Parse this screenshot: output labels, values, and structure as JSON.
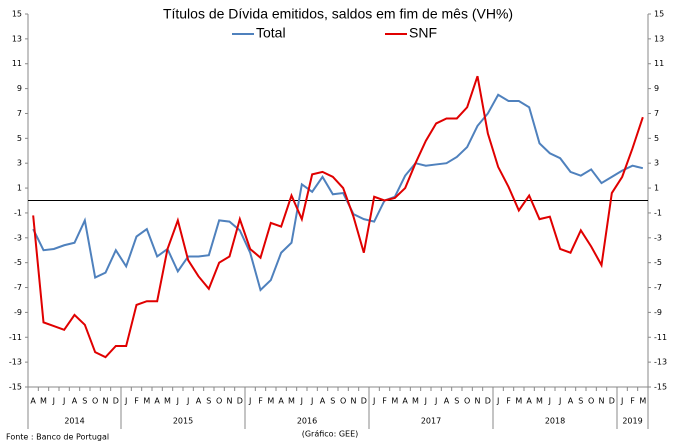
{
  "chart_data": {
    "type": "line",
    "title": "Títulos de Dívida emitidos, saldos em fim de mês  (VH%)",
    "source": "Fonte : Banco de Portugal",
    "credit": "(Gráfico: GEE)",
    "categories": [
      "A",
      "M",
      "J",
      "J",
      "A",
      "S",
      "O",
      "N",
      "D",
      "J",
      "F",
      "M",
      "A",
      "M",
      "J",
      "J",
      "A",
      "S",
      "O",
      "N",
      "D",
      "J",
      "F",
      "M",
      "A",
      "M",
      "J",
      "J",
      "A",
      "S",
      "O",
      "N",
      "D",
      "J",
      "F",
      "M",
      "A",
      "M",
      "J",
      "J",
      "A",
      "S",
      "O",
      "N",
      "D",
      "J",
      "F",
      "M",
      "A",
      "M",
      "J",
      "J",
      "A",
      "S",
      "O",
      "N",
      "D",
      "J",
      "F",
      "M"
    ],
    "year_labels": [
      "2014",
      "2015",
      "2016",
      "2017",
      "2018",
      "2019"
    ],
    "series": [
      {
        "name": "Total",
        "color": "#4f81bd",
        "values": [
          -2.3,
          -4.0,
          -3.9,
          -3.6,
          -3.4,
          -1.6,
          -6.2,
          -5.8,
          -4.0,
          -5.3,
          -2.9,
          -2.3,
          -4.5,
          -3.9,
          -5.7,
          -4.5,
          -4.5,
          -4.4,
          -1.6,
          -1.7,
          -2.4,
          -4.2,
          -7.2,
          -6.4,
          -4.2,
          -3.4,
          1.3,
          0.7,
          1.9,
          0.5,
          0.6,
          -1.1,
          -1.5,
          -1.7,
          0.0,
          0.3,
          2.0,
          3.0,
          2.8,
          2.9,
          3.0,
          3.5,
          4.3,
          6.0,
          7.0,
          8.5,
          8.0,
          8.0,
          7.5,
          4.6,
          3.8,
          3.4,
          2.3,
          2.0,
          2.5,
          1.4,
          1.9,
          2.4,
          2.8,
          2.6
        ]
      },
      {
        "name": "SNF",
        "color": "#e00000",
        "values": [
          -1.2,
          -9.8,
          -10.1,
          -10.4,
          -9.2,
          -10.0,
          -12.2,
          -12.6,
          -11.7,
          -11.7,
          -8.4,
          -8.1,
          -8.1,
          -3.9,
          -1.6,
          -4.8,
          -6.1,
          -7.1,
          -5.0,
          -4.5,
          -1.5,
          -3.9,
          -4.6,
          -1.8,
          -2.1,
          0.4,
          -1.5,
          2.1,
          2.3,
          1.9,
          1.0,
          -1.3,
          -4.2,
          0.3,
          0.0,
          0.2,
          1.0,
          3.0,
          4.8,
          6.2,
          6.6,
          6.6,
          7.5,
          10.0,
          5.4,
          2.7,
          1.1,
          -0.8,
          0.4,
          -1.5,
          -1.3,
          -3.9,
          -4.2,
          -2.4,
          -3.7,
          -5.2,
          0.6,
          1.9,
          4.2,
          6.7
        ]
      }
    ],
    "ylim": [
      -15,
      15
    ],
    "yticks": [
      -15,
      -13,
      -11,
      -9,
      -7,
      -5,
      -3,
      -1,
      1,
      3,
      5,
      7,
      9,
      11,
      13,
      15
    ],
    "y2lim": [
      -15,
      15
    ],
    "y2ticks": [
      -15,
      -13,
      -11,
      -9,
      -7,
      -5,
      -3,
      -1,
      1,
      3,
      5,
      7,
      9,
      11,
      13,
      15
    ],
    "grid": false
  }
}
